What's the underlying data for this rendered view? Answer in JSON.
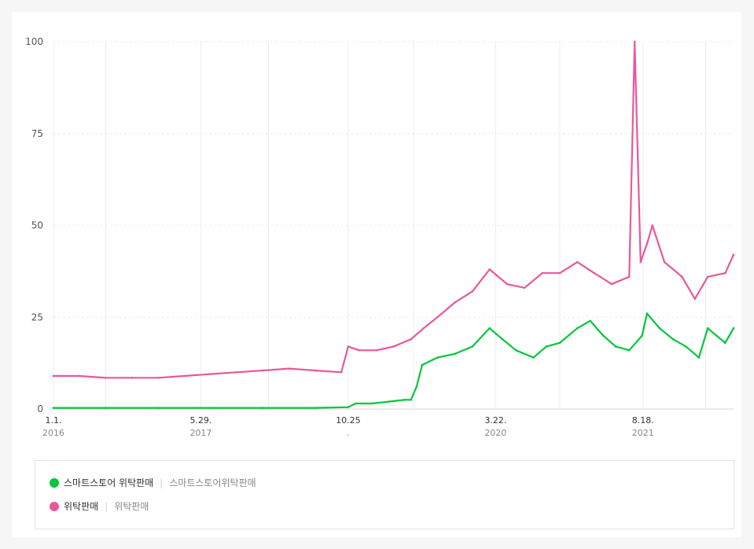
{
  "colors": {
    "background": "#f6f6f6",
    "card": "#ffffff",
    "grid": "#ececec",
    "axis_text": "#555555",
    "series_green": "#00c73c",
    "series_pink": "#e8589a"
  },
  "legend": {
    "items": [
      {
        "dot_color": "#00c73c",
        "label": "스마트스토어 위탁판매",
        "keyword": "스마트스토어위탁판매"
      },
      {
        "dot_color": "#e8589a",
        "label": "위탁판매",
        "keyword": "위탁판매"
      }
    ]
  },
  "chart_data": {
    "type": "line",
    "title": "",
    "xlabel": "",
    "ylabel": "",
    "ylim": [
      0,
      100
    ],
    "yticks": [
      0,
      25,
      50,
      75,
      100
    ],
    "x_range": [
      "2016-01-01",
      "2022-06-30"
    ],
    "x_ticks": [
      {
        "date": "2016-01-01",
        "label": "1.1.",
        "sublabel": "2016"
      },
      {
        "date": "2016-07-01",
        "label": "",
        "sublabel": ""
      },
      {
        "date": "2017-05-29",
        "label": "5.29.",
        "sublabel": "2017"
      },
      {
        "date": "2018-01-20",
        "label": "",
        "sublabel": ""
      },
      {
        "date": "2018-10-25",
        "label": "10.25",
        "sublabel": "."
      },
      {
        "date": "2019-06-10",
        "label": "",
        "sublabel": ""
      },
      {
        "date": "2020-03-22",
        "label": "3.22.",
        "sublabel": "2020"
      },
      {
        "date": "2020-11-01",
        "label": "",
        "sublabel": ""
      },
      {
        "date": "2021-08-18",
        "label": "8.18.",
        "sublabel": "2021"
      },
      {
        "date": "2022-03-25",
        "label": "",
        "sublabel": ""
      }
    ],
    "grid": true,
    "legend_position": "bottom",
    "series": [
      {
        "name": "스마트스토어 위탁판매",
        "color": "#00c73c",
        "points": [
          [
            "2016-01-01",
            0.3
          ],
          [
            "2016-07-01",
            0.3
          ],
          [
            "2017-01-01",
            0.3
          ],
          [
            "2017-07-01",
            0.3
          ],
          [
            "2018-01-01",
            0.3
          ],
          [
            "2018-07-01",
            0.3
          ],
          [
            "2018-10-25",
            0.5
          ],
          [
            "2018-11-20",
            1.5
          ],
          [
            "2019-01-15",
            1.5
          ],
          [
            "2019-03-15",
            2
          ],
          [
            "2019-05-10",
            2.5
          ],
          [
            "2019-06-01",
            2.5
          ],
          [
            "2019-06-20",
            6
          ],
          [
            "2019-07-10",
            12
          ],
          [
            "2019-09-01",
            14
          ],
          [
            "2019-11-01",
            15
          ],
          [
            "2020-01-01",
            17
          ],
          [
            "2020-03-01",
            22
          ],
          [
            "2020-04-15",
            19
          ],
          [
            "2020-06-01",
            16
          ],
          [
            "2020-08-01",
            14
          ],
          [
            "2020-09-15",
            17
          ],
          [
            "2020-11-01",
            18
          ],
          [
            "2021-01-01",
            22
          ],
          [
            "2021-02-15",
            24
          ],
          [
            "2021-04-01",
            20
          ],
          [
            "2021-05-15",
            17
          ],
          [
            "2021-07-01",
            16
          ],
          [
            "2021-08-15",
            20
          ],
          [
            "2021-09-01",
            26
          ],
          [
            "2021-10-15",
            22
          ],
          [
            "2021-12-01",
            19
          ],
          [
            "2022-01-15",
            17
          ],
          [
            "2022-03-01",
            14
          ],
          [
            "2022-04-01",
            22
          ],
          [
            "2022-05-01",
            20
          ],
          [
            "2022-06-01",
            18
          ],
          [
            "2022-06-30",
            22
          ]
        ]
      },
      {
        "name": "위탁판매",
        "color": "#e8589a",
        "points": [
          [
            "2016-01-01",
            9
          ],
          [
            "2016-04-01",
            9
          ],
          [
            "2016-07-01",
            8.5
          ],
          [
            "2016-10-01",
            8.5
          ],
          [
            "2017-01-01",
            8.5
          ],
          [
            "2017-04-01",
            9
          ],
          [
            "2017-07-01",
            9.5
          ],
          [
            "2017-10-01",
            10
          ],
          [
            "2018-01-01",
            10.5
          ],
          [
            "2018-04-01",
            11
          ],
          [
            "2018-07-01",
            10.5
          ],
          [
            "2018-10-01",
            10
          ],
          [
            "2018-10-25",
            17
          ],
          [
            "2018-12-01",
            16
          ],
          [
            "2019-02-01",
            16
          ],
          [
            "2019-04-01",
            17
          ],
          [
            "2019-06-01",
            19
          ],
          [
            "2019-07-15",
            22
          ],
          [
            "2019-09-01",
            25
          ],
          [
            "2019-11-01",
            29
          ],
          [
            "2020-01-01",
            32
          ],
          [
            "2020-03-01",
            38
          ],
          [
            "2020-05-01",
            34
          ],
          [
            "2020-07-01",
            33
          ],
          [
            "2020-09-01",
            37
          ],
          [
            "2020-11-01",
            37
          ],
          [
            "2021-01-01",
            40
          ],
          [
            "2021-03-01",
            37
          ],
          [
            "2021-05-01",
            34
          ],
          [
            "2021-07-01",
            36
          ],
          [
            "2021-07-20",
            100
          ],
          [
            "2021-08-10",
            40
          ],
          [
            "2021-09-01",
            45
          ],
          [
            "2021-09-20",
            50
          ],
          [
            "2021-11-01",
            40
          ],
          [
            "2022-01-01",
            36
          ],
          [
            "2022-02-15",
            30
          ],
          [
            "2022-04-01",
            36
          ],
          [
            "2022-06-01",
            37
          ],
          [
            "2022-06-30",
            42
          ]
        ]
      }
    ]
  }
}
